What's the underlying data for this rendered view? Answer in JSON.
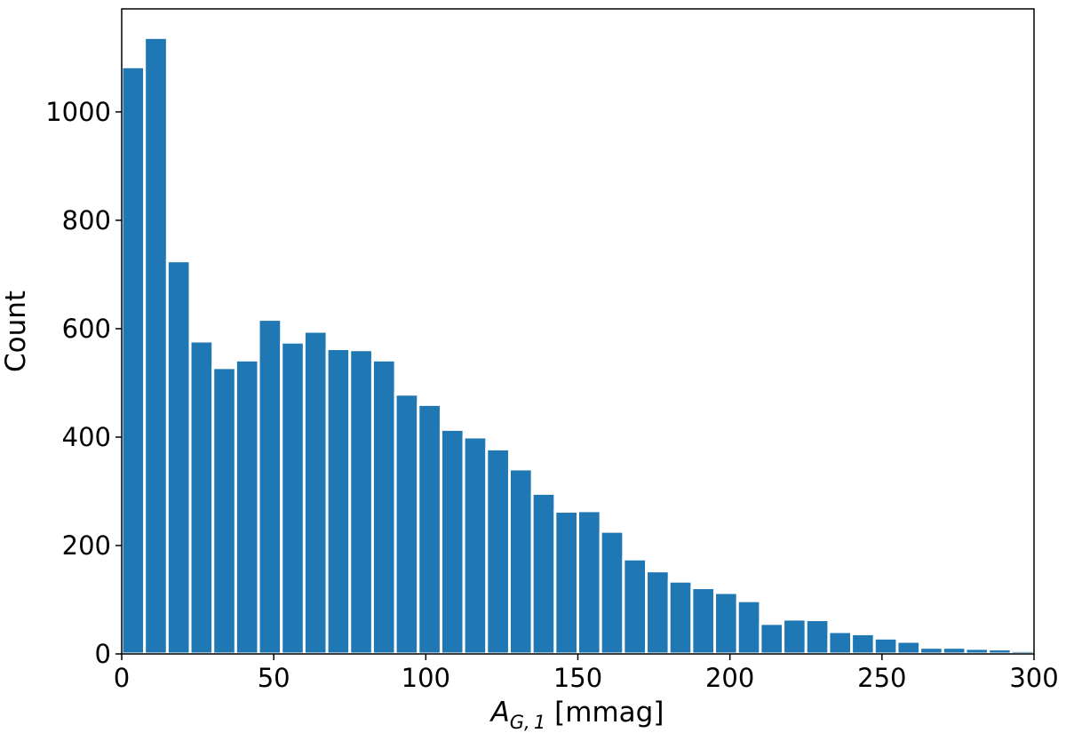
{
  "chart_data": {
    "type": "bar",
    "bin_width": 7.5,
    "bin_starts": [
      0,
      7.5,
      15,
      22.5,
      30,
      37.5,
      45,
      52.5,
      60,
      67.5,
      75,
      82.5,
      90,
      97.5,
      105,
      112.5,
      120,
      127.5,
      135,
      142.5,
      150,
      157.5,
      165,
      172.5,
      180,
      187.5,
      195,
      202.5,
      210,
      217.5,
      225,
      232.5,
      240,
      247.5,
      255,
      262.5,
      270,
      277.5,
      285,
      292.5
    ],
    "values": [
      1083,
      1137,
      725,
      577,
      528,
      542,
      617,
      575,
      595,
      563,
      561,
      542,
      479,
      460,
      414,
      400,
      378,
      341,
      296,
      263,
      264,
      226,
      175,
      153,
      134,
      122,
      113,
      98,
      56,
      64,
      63,
      41,
      37,
      29,
      23,
      12,
      12,
      10,
      9,
      6
    ],
    "color": "#1f77b4",
    "xlim": [
      0,
      300
    ],
    "ylim": [
      0,
      1190
    ],
    "x_ticks": [
      0,
      50,
      100,
      150,
      200,
      250,
      300
    ],
    "y_ticks": [
      0,
      200,
      400,
      600,
      800,
      1000
    ],
    "xlabel_main": "A",
    "xlabel_sub": "G, 1",
    "xlabel_rest": " [mmag]",
    "ylabel": "Count",
    "grid": false,
    "legend": "none"
  }
}
